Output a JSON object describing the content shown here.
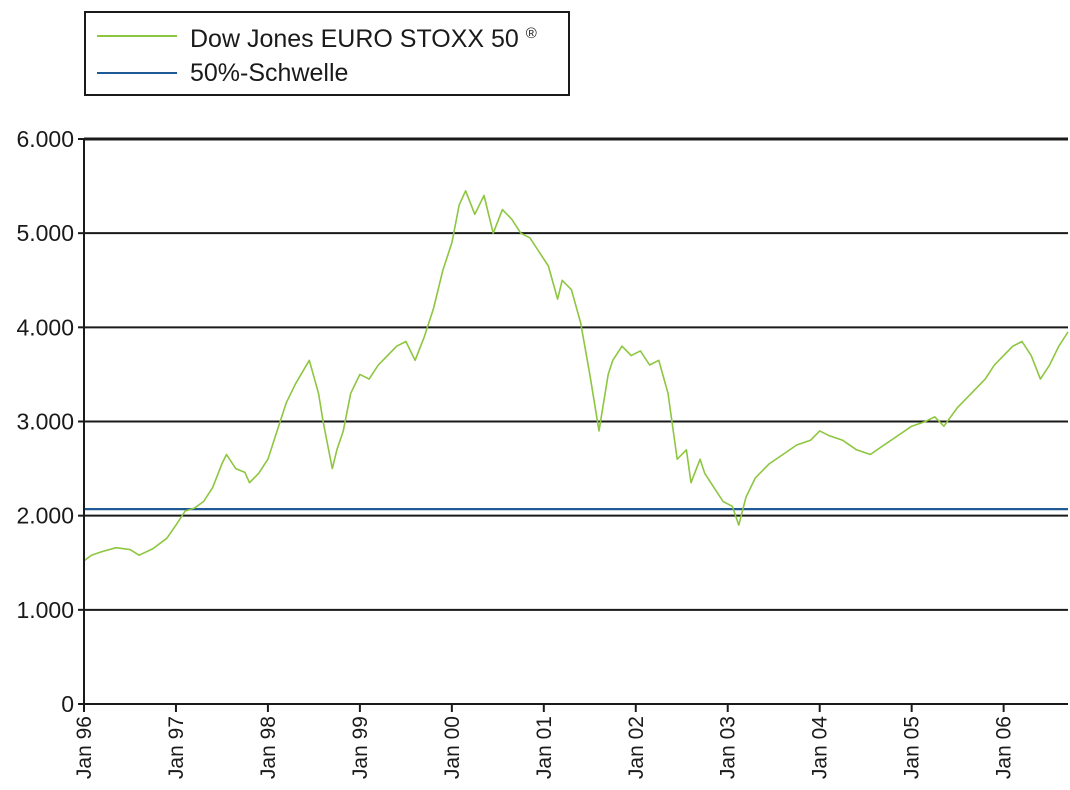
{
  "legend": [
    {
      "label": "Dow Jones EURO STOXX 50",
      "sup": "®",
      "color": "#8dc63f"
    },
    {
      "label": "50%-Schwelle",
      "sup": "",
      "color": "#1f5a96"
    }
  ],
  "chart_data": {
    "type": "line",
    "title": "",
    "xlabel": "",
    "ylabel": "",
    "ylim": [
      0,
      6000
    ],
    "yticks": [
      0,
      1000,
      2000,
      3000,
      4000,
      5000,
      6000
    ],
    "ytick_labels": [
      "0",
      "1.000",
      "2.000",
      "3.000",
      "4.000",
      "5.000",
      "6.000"
    ],
    "xlim": [
      1996.0,
      2006.7
    ],
    "xticks": [
      1996,
      1997,
      1998,
      1999,
      2000,
      2001,
      2002,
      2003,
      2004,
      2005,
      2006
    ],
    "xtick_labels": [
      "Jan 96",
      "Jan 97",
      "Jan 98",
      "Jan 99",
      "Jan 00",
      "Jan 01",
      "Jan 02",
      "Jan 03",
      "Jan 04",
      "Jan 05",
      "Jan 06"
    ],
    "grid": "horizontal",
    "legend_position": "top-left",
    "series": [
      {
        "name": "Dow Jones EURO STOXX 50",
        "color": "#8dc63f",
        "x": [
          1996.0,
          1996.08,
          1996.2,
          1996.35,
          1996.5,
          1996.6,
          1996.75,
          1996.9,
          1997.0,
          1997.1,
          1997.2,
          1997.3,
          1997.4,
          1997.5,
          1997.55,
          1997.65,
          1997.75,
          1997.8,
          1997.9,
          1998.0,
          1998.1,
          1998.2,
          1998.3,
          1998.45,
          1998.55,
          1998.6,
          1998.7,
          1998.75,
          1998.82,
          1998.9,
          1999.0,
          1999.1,
          1999.2,
          1999.3,
          1999.4,
          1999.5,
          1999.6,
          1999.7,
          1999.8,
          1999.9,
          2000.0,
          2000.08,
          2000.15,
          2000.25,
          2000.35,
          2000.45,
          2000.55,
          2000.65,
          2000.75,
          2000.85,
          2000.95,
          2001.05,
          2001.15,
          2001.2,
          2001.3,
          2001.4,
          2001.5,
          2001.6,
          2001.7,
          2001.75,
          2001.85,
          2001.95,
          2002.05,
          2002.15,
          2002.25,
          2002.35,
          2002.45,
          2002.55,
          2002.6,
          2002.7,
          2002.75,
          2002.85,
          2002.95,
          2003.05,
          2003.12,
          2003.2,
          2003.3,
          2003.45,
          2003.6,
          2003.75,
          2003.9,
          2004.0,
          2004.1,
          2004.25,
          2004.4,
          2004.55,
          2004.7,
          2004.85,
          2005.0,
          2005.15,
          2005.25,
          2005.35,
          2005.5,
          2005.65,
          2005.8,
          2005.9,
          2006.0,
          2006.1,
          2006.2,
          2006.3,
          2006.4,
          2006.5,
          2006.6,
          2006.7
        ],
        "values": [
          1520,
          1580,
          1620,
          1660,
          1640,
          1580,
          1650,
          1760,
          1900,
          2050,
          2080,
          2150,
          2300,
          2550,
          2650,
          2500,
          2460,
          2350,
          2450,
          2600,
          2900,
          3200,
          3400,
          3650,
          3300,
          3000,
          2500,
          2700,
          2900,
          3300,
          3500,
          3450,
          3600,
          3700,
          3800,
          3850,
          3650,
          3900,
          4200,
          4600,
          4900,
          5300,
          5450,
          5200,
          5400,
          5000,
          5250,
          5150,
          5000,
          4950,
          4800,
          4650,
          4300,
          4500,
          4400,
          4050,
          3500,
          2900,
          3500,
          3650,
          3800,
          3700,
          3750,
          3600,
          3650,
          3300,
          2600,
          2700,
          2350,
          2600,
          2450,
          2300,
          2150,
          2100,
          1900,
          2200,
          2400,
          2550,
          2650,
          2750,
          2800,
          2900,
          2850,
          2800,
          2700,
          2650,
          2750,
          2850,
          2950,
          3000,
          3050,
          2950,
          3150,
          3300,
          3450,
          3600,
          3700,
          3800,
          3850,
          3700,
          3450,
          3600,
          3800,
          3950
        ]
      },
      {
        "name": "50%-Schwelle",
        "color": "#1f5a96",
        "x": [
          1996.0,
          2006.7
        ],
        "values": [
          2070,
          2070
        ]
      }
    ]
  }
}
